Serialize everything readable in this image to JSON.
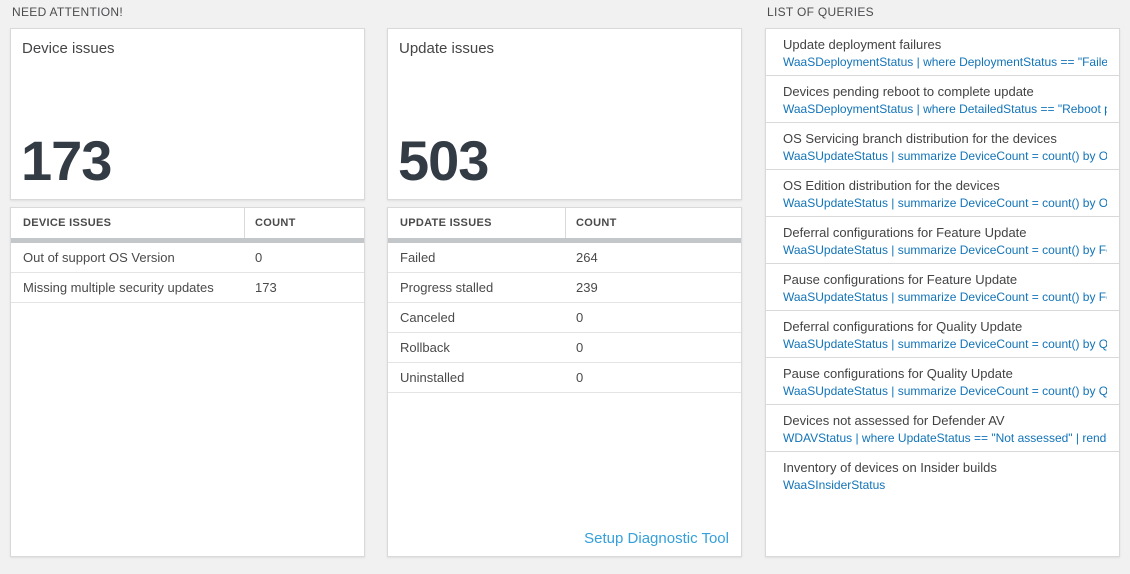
{
  "colors": {
    "page_background": "#f1f1f1",
    "tile_background": "#ffffff",
    "query_link_blue": "#1274b8",
    "setup_link_blue": "#36a0da",
    "big_number": "#333b44",
    "header_bar_gray": "#c4c7c9"
  },
  "need_attention": {
    "section_title": "NEED ATTENTION!",
    "device_tile": {
      "title": "Device issues",
      "count": "173",
      "table": {
        "headers": [
          "DEVICE ISSUES",
          "COUNT"
        ],
        "rows": [
          {
            "label": "Out of support OS Version",
            "count": "0"
          },
          {
            "label": "Missing multiple security updates",
            "count": "173"
          }
        ]
      }
    },
    "update_tile": {
      "title": "Update issues",
      "count": "503",
      "table": {
        "headers": [
          "UPDATE ISSUES",
          "COUNT"
        ],
        "rows": [
          {
            "label": "Failed",
            "count": "264"
          },
          {
            "label": "Progress stalled",
            "count": "239"
          },
          {
            "label": "Canceled",
            "count": "0"
          },
          {
            "label": "Rollback",
            "count": "0"
          },
          {
            "label": "Uninstalled",
            "count": "0"
          }
        ]
      },
      "footer_link": "Setup Diagnostic Tool"
    }
  },
  "queries": {
    "section_title": "LIST OF QUERIES",
    "items": [
      {
        "title": "Update deployment failures",
        "query": "WaaSDeploymentStatus | where DeploymentStatus == \"Failed\" |..."
      },
      {
        "title": "Devices pending reboot to complete update",
        "query": "WaaSDeploymentStatus | where DetailedStatus == \"Reboot pend..."
      },
      {
        "title": "OS Servicing branch distribution for the devices",
        "query": "WaaSUpdateStatus | summarize DeviceCount = count() by OSSer..."
      },
      {
        "title": "OS Edition distribution for the devices",
        "query": "WaaSUpdateStatus | summarize DeviceCount = count() by OSEdit..."
      },
      {
        "title": "Deferral configurations for Feature Update",
        "query": "WaaSUpdateStatus | summarize DeviceCount = count() by Featur..."
      },
      {
        "title": "Pause configurations for Feature Update",
        "query": "WaaSUpdateStatus | summarize DeviceCount = count() by Featur..."
      },
      {
        "title": "Deferral configurations for Quality Update",
        "query": "WaaSUpdateStatus | summarize DeviceCount = count() by Qualit..."
      },
      {
        "title": "Pause configurations for Quality Update",
        "query": "WaaSUpdateStatus | summarize DeviceCount = count() by Qualit..."
      },
      {
        "title": "Devices not assessed for Defender AV",
        "query": "WDAVStatus | where UpdateStatus == \"Not assessed\" | render ta..."
      },
      {
        "title": "Inventory of devices on Insider builds",
        "query": "WaaSInsiderStatus"
      }
    ]
  }
}
